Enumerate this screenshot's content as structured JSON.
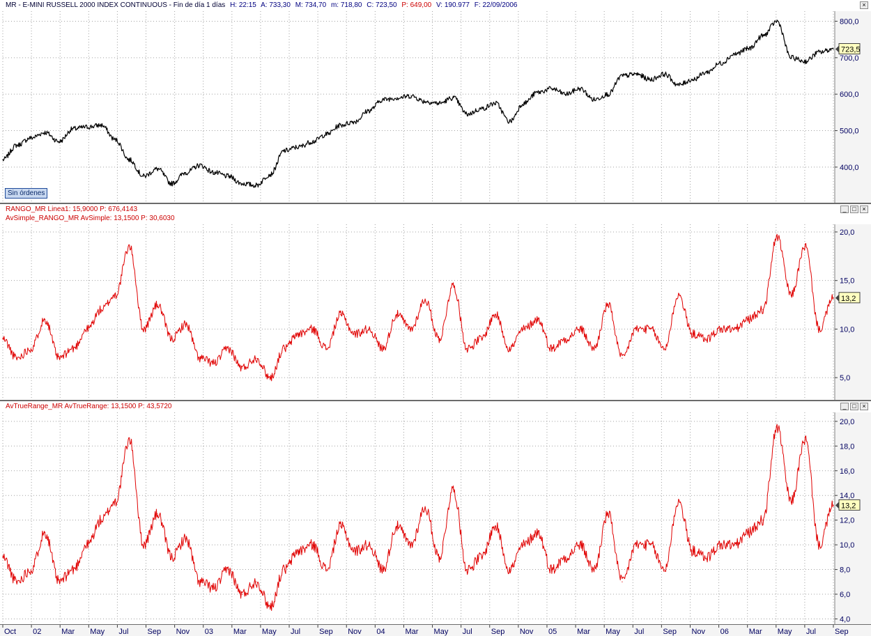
{
  "header": {
    "symbol": "MR - E-MINI RUSSELL 2000 INDEX CONTINUOUS - Fin de día 1 días",
    "h": "H: 22:15",
    "a": "A: 733,30",
    "m": "M: 734,70",
    "mn": "m: 718,80",
    "c": "C: 723,50",
    "p": "P: 649,00",
    "v": "V: 190.977",
    "f": "F: 22/09/2006"
  },
  "price_pane": {
    "badge": "Sin órdenes",
    "last_value": "723,5",
    "ticks": [
      "400,0",
      "500,0",
      "600,0",
      "700,0",
      "800,0"
    ]
  },
  "ind1_pane": {
    "title_a": "RANGO_MR  Linea1: 15,9000  P: 676,4143",
    "title_b": "AvSimple_RANGO_MR  AvSimple: 13,1500  P: 30,6030",
    "last_value": "13,2",
    "ticks": [
      "5,0",
      "10,0",
      "15,0",
      "20,0"
    ]
  },
  "ind2_pane": {
    "title": "AvTrueRange_MR  AvTrueRange: 13,1500  P: 43,5720",
    "last_value": "13,2",
    "ticks": [
      "4,0",
      "6,0",
      "8,0",
      "10,0",
      "12,0",
      "14,0",
      "16,0",
      "18,0",
      "20,0"
    ]
  },
  "window_buttons": {
    "min": "_",
    "restore": "□",
    "close": "×"
  },
  "x_labels": [
    "Oct",
    "02",
    "Mar",
    "May",
    "Jul",
    "Sep",
    "Nov",
    "03",
    "Mar",
    "May",
    "Jul",
    "Sep",
    "Nov",
    "04",
    "Mar",
    "May",
    "Jul",
    "Sep",
    "Nov",
    "05",
    "Mar",
    "May",
    "Jul",
    "Sep",
    "Nov",
    "06",
    "Mar",
    "May",
    "Jul",
    "Sep"
  ],
  "colors": {
    "price": "#000000",
    "indicator": "#e00000",
    "grid": "#a0a0a0",
    "label_bg": "#ffffc0"
  },
  "chart_data": [
    {
      "type": "line",
      "title": "MR - E-MINI RUSSELL 2000 INDEX CONTINUOUS",
      "ylim": [
        310,
        820
      ],
      "grid": true,
      "series": [
        {
          "name": "MR",
          "x": [
            "2001-10",
            "2001-11",
            "2001-12",
            "2002-01",
            "2002-02",
            "2002-03",
            "2002-04",
            "2002-05",
            "2002-06",
            "2002-07",
            "2002-08",
            "2002-09",
            "2002-10",
            "2002-11",
            "2002-12",
            "2003-01",
            "2003-02",
            "2003-03",
            "2003-04",
            "2003-05",
            "2003-06",
            "2003-07",
            "2003-08",
            "2003-09",
            "2003-10",
            "2003-11",
            "2003-12",
            "2004-01",
            "2004-02",
            "2004-03",
            "2004-04",
            "2004-05",
            "2004-06",
            "2004-07",
            "2004-08",
            "2004-09",
            "2004-10",
            "2004-11",
            "2004-12",
            "2005-01",
            "2005-02",
            "2005-03",
            "2005-04",
            "2005-05",
            "2005-06",
            "2005-07",
            "2005-08",
            "2005-09",
            "2005-10",
            "2005-11",
            "2005-12",
            "2006-01",
            "2006-02",
            "2006-03",
            "2006-04",
            "2006-05",
            "2006-06",
            "2006-07",
            "2006-08",
            "2006-09"
          ],
          "values": [
            420,
            460,
            480,
            495,
            470,
            505,
            510,
            515,
            475,
            420,
            375,
            395,
            355,
            385,
            405,
            385,
            375,
            355,
            350,
            380,
            445,
            455,
            470,
            490,
            515,
            525,
            555,
            585,
            590,
            595,
            580,
            575,
            590,
            545,
            560,
            575,
            525,
            575,
            605,
            615,
            600,
            615,
            585,
            600,
            650,
            655,
            640,
            655,
            625,
            640,
            660,
            685,
            710,
            725,
            760,
            800,
            700,
            690,
            715,
            723.5
          ]
        }
      ]
    },
    {
      "type": "line",
      "title": "AvSimple_RANGO_MR",
      "ylim": [
        3.0,
        20.5
      ],
      "grid": true,
      "series": [
        {
          "name": "AvSimple_RANGO_MR",
          "x": [
            "2001-10",
            "2001-11",
            "2001-12",
            "2002-01",
            "2002-02",
            "2002-03",
            "2002-04",
            "2002-05",
            "2002-06",
            "2002-07",
            "2002-08",
            "2002-09",
            "2002-10",
            "2002-11",
            "2002-12",
            "2003-01",
            "2003-02",
            "2003-03",
            "2003-04",
            "2003-05",
            "2003-06",
            "2003-07",
            "2003-08",
            "2003-09",
            "2003-10",
            "2003-11",
            "2003-12",
            "2004-01",
            "2004-02",
            "2004-03",
            "2004-04",
            "2004-05",
            "2004-06",
            "2004-07",
            "2004-08",
            "2004-09",
            "2004-10",
            "2004-11",
            "2004-12",
            "2005-01",
            "2005-02",
            "2005-03",
            "2005-04",
            "2005-05",
            "2005-06",
            "2005-07",
            "2005-08",
            "2005-09",
            "2005-10",
            "2005-11",
            "2005-12",
            "2006-01",
            "2006-02",
            "2006-03",
            "2006-04",
            "2006-05",
            "2006-06",
            "2006-07",
            "2006-08",
            "2006-09"
          ],
          "values": [
            9,
            7,
            8,
            11,
            7,
            8,
            10,
            12,
            13.5,
            18.5,
            10,
            12.5,
            9,
            10.5,
            7,
            6.5,
            8,
            6,
            7,
            5,
            8,
            9.5,
            10,
            8,
            11.5,
            9.5,
            10,
            8,
            11.5,
            10,
            13,
            9,
            14.5,
            8,
            9,
            11.5,
            8,
            10,
            11,
            8,
            9,
            10,
            8,
            12.5,
            7,
            10,
            10,
            8,
            13.5,
            9.5,
            9,
            10,
            10,
            11,
            12,
            19.5,
            13.5,
            18.5,
            10,
            13.2
          ]
        }
      ]
    },
    {
      "type": "line",
      "title": "AvTrueRange_MR",
      "ylim": [
        3.8,
        20.5
      ],
      "grid": true,
      "series": [
        {
          "name": "AvTrueRange_MR",
          "x": [
            "2001-10",
            "2001-11",
            "2001-12",
            "2002-01",
            "2002-02",
            "2002-03",
            "2002-04",
            "2002-05",
            "2002-06",
            "2002-07",
            "2002-08",
            "2002-09",
            "2002-10",
            "2002-11",
            "2002-12",
            "2003-01",
            "2003-02",
            "2003-03",
            "2003-04",
            "2003-05",
            "2003-06",
            "2003-07",
            "2003-08",
            "2003-09",
            "2003-10",
            "2003-11",
            "2003-12",
            "2004-01",
            "2004-02",
            "2004-03",
            "2004-04",
            "2004-05",
            "2004-06",
            "2004-07",
            "2004-08",
            "2004-09",
            "2004-10",
            "2004-11",
            "2004-12",
            "2005-01",
            "2005-02",
            "2005-03",
            "2005-04",
            "2005-05",
            "2005-06",
            "2005-07",
            "2005-08",
            "2005-09",
            "2005-10",
            "2005-11",
            "2005-12",
            "2006-01",
            "2006-02",
            "2006-03",
            "2006-04",
            "2006-05",
            "2006-06",
            "2006-07",
            "2006-08",
            "2006-09"
          ],
          "values": [
            9,
            7,
            8,
            11,
            7,
            8,
            10,
            12,
            13.5,
            18.5,
            10,
            12.5,
            9,
            10.5,
            7,
            6.5,
            8,
            6,
            7,
            5,
            8,
            9.5,
            10,
            8,
            11.5,
            9.5,
            10,
            8,
            11.5,
            10,
            13,
            9,
            14.5,
            8,
            9,
            11.5,
            8,
            10,
            11,
            8,
            9,
            10,
            8,
            12.5,
            7,
            10,
            10,
            8,
            13.5,
            9.5,
            9,
            10,
            10,
            11,
            12,
            19.5,
            13.5,
            18.5,
            10,
            13.2
          ]
        }
      ]
    }
  ]
}
